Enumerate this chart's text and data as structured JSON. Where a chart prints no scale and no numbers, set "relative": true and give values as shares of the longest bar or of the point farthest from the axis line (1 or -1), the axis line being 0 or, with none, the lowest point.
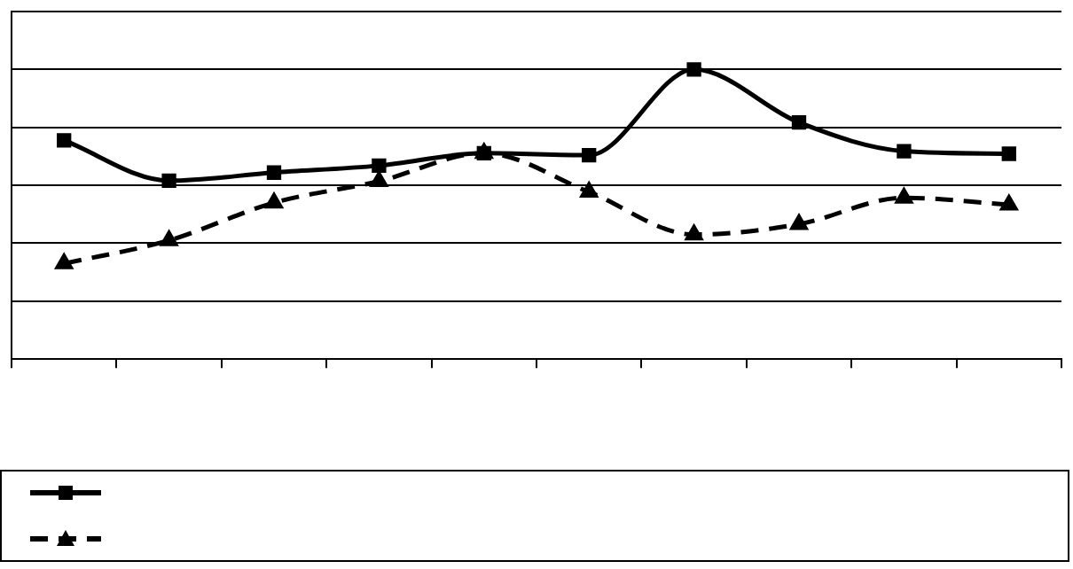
{
  "chart_data": {
    "type": "line",
    "relative": true,
    "categories": [
      null,
      null,
      null,
      null,
      null,
      null,
      null,
      null,
      null,
      null
    ],
    "series": [
      {
        "color": "#000000",
        "marker": "square",
        "line_style": "solid",
        "values": [
          0.755,
          0.616,
          0.644,
          0.668,
          0.711,
          0.704,
          1,
          0.817,
          0.718,
          0.709
        ]
      },
      {
        "color": "#000000",
        "marker": "triangle",
        "line_style": "dashed",
        "values": [
          0.33,
          0.41,
          0.54,
          0.614,
          0.711,
          0.577,
          0.43,
          0.466,
          0.557,
          0.533
        ]
      }
    ],
    "grid": "y"
  }
}
